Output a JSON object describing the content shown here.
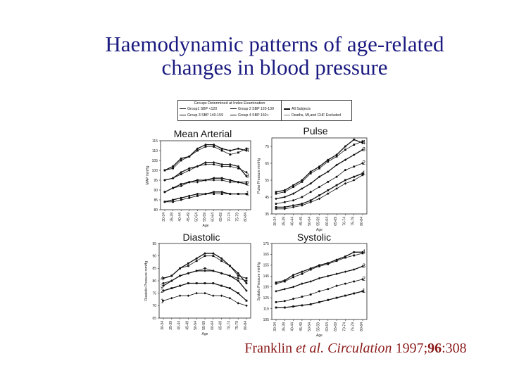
{
  "slide": {
    "title_line1": "Haemodynamic patterns of age-related",
    "title_line2": "changes in blood pressure",
    "citation_part1": "Franklin ",
    "citation_italic1": "et al. Circulation",
    "citation_part2": " 1997;",
    "citation_bold": "96",
    "citation_part3": ":308"
  },
  "legend": {
    "header": "Groups Determined at Index Examination",
    "items": [
      {
        "label": "Group1 SBP <120"
      },
      {
        "label": "Group 2 SBP 120-139"
      },
      {
        "label": "Group 3 SBP 140-159"
      },
      {
        "label": "Group 4 SBP 160+"
      }
    ],
    "subject_items": [
      {
        "label": "All Subjects"
      },
      {
        "label": "Deaths, MI,and CHF Excluded"
      }
    ]
  },
  "colors": {
    "title": "#1a1a80",
    "citation": "#8b1a1a",
    "lines": "#111111"
  },
  "chart_data": [
    {
      "type": "line",
      "title": "Mean Arterial",
      "ylabel": "MAP mmHg",
      "xlabel": "Age",
      "ylim": [
        80,
        115
      ],
      "yticks": [
        80,
        85,
        90,
        95,
        100,
        105,
        110,
        115
      ],
      "categories": [
        "30-34",
        "35-39",
        "40-44",
        "45-49",
        "50-54",
        "55-59",
        "60-64",
        "65-69",
        "70-74",
        "75-79",
        "80-84"
      ],
      "series": [
        {
          "name": "4",
          "values": [
            100,
            102,
            106,
            107,
            111,
            113,
            113,
            111,
            110,
            111,
            110
          ]
        },
        {
          "name": "4",
          "values": [
            100,
            101,
            105,
            107,
            110,
            112,
            112,
            110,
            108,
            109,
            111
          ]
        },
        {
          "name": "3",
          "values": [
            95,
            96,
            99,
            101,
            102,
            104,
            104,
            103,
            103,
            102,
            97
          ]
        },
        {
          "name": "3",
          "values": [
            95,
            96,
            98,
            100,
            102,
            103,
            103,
            102,
            102,
            101,
            99
          ]
        },
        {
          "name": "2",
          "values": [
            89,
            91,
            93,
            94,
            95,
            95,
            96,
            96,
            95,
            94,
            93
          ]
        },
        {
          "name": "2",
          "values": [
            89,
            91,
            92,
            94,
            94,
            95,
            95,
            95,
            94,
            94,
            94
          ]
        },
        {
          "name": "1",
          "values": [
            84,
            85,
            86,
            87,
            88,
            88,
            89,
            89,
            88,
            88,
            88
          ]
        },
        {
          "name": "1",
          "values": [
            84,
            84,
            85,
            86,
            87,
            88,
            88,
            88,
            88,
            88,
            88
          ]
        }
      ]
    },
    {
      "type": "line",
      "title": "Pulse",
      "ylabel": "Pulse Pressure mmHg",
      "xlabel": "Age",
      "ylim": [
        35,
        80
      ],
      "yticks": [
        35,
        45,
        55,
        65,
        75
      ],
      "categories": [
        "30-34",
        "35-39",
        "40-44",
        "45-49",
        "50-54",
        "55-59",
        "60-64",
        "65-69",
        "70-74",
        "75-79",
        "80-84"
      ],
      "series": [
        {
          "name": "4",
          "values": [
            48,
            49,
            52,
            55,
            60,
            63,
            67,
            70,
            75,
            79,
            77
          ]
        },
        {
          "name": "4",
          "values": [
            47,
            48,
            51,
            54,
            59,
            62,
            66,
            69,
            73,
            76,
            78
          ]
        },
        {
          "name": "3",
          "values": [
            44,
            45,
            47,
            50,
            53,
            57,
            60,
            64,
            67,
            70,
            73
          ]
        },
        {
          "name": "2",
          "values": [
            41,
            42,
            43,
            45,
            48,
            51,
            54,
            57,
            61,
            63,
            65
          ]
        },
        {
          "name": "1",
          "values": [
            39,
            39,
            40,
            41,
            43,
            46,
            49,
            52,
            55,
            57,
            59
          ]
        },
        {
          "name": "1",
          "values": [
            38,
            38,
            39,
            40,
            42,
            44,
            47,
            50,
            53,
            55,
            58
          ]
        }
      ]
    },
    {
      "type": "line",
      "title": "Diastolic",
      "ylabel": "Diastolic Pressure mmHg",
      "xlabel": "Age",
      "ylim": [
        65,
        95
      ],
      "yticks": [
        65,
        70,
        75,
        80,
        85,
        90,
        95
      ],
      "categories": [
        "30-34",
        "35-39",
        "40-44",
        "45-49",
        "50-54",
        "55-59",
        "60-64",
        "65-69",
        "70-74",
        "75-79",
        "80-84"
      ],
      "series": [
        {
          "name": "4",
          "values": [
            81,
            82,
            85,
            87,
            89,
            91,
            91,
            89,
            86,
            83,
            79
          ]
        },
        {
          "name": "4",
          "values": [
            81,
            82,
            85,
            86,
            88,
            90,
            90,
            88,
            86,
            82,
            81
          ]
        },
        {
          "name": "3",
          "values": [
            78,
            80,
            82,
            83,
            84,
            84,
            84,
            83,
            82,
            80,
            76
          ]
        },
        {
          "name": "3",
          "values": [
            79,
            80,
            82,
            83,
            84,
            85,
            84,
            83,
            82,
            81,
            80
          ]
        },
        {
          "name": "2",
          "values": [
            76,
            77,
            78,
            79,
            79,
            79,
            79,
            78,
            77,
            75,
            72
          ]
        },
        {
          "name": "1",
          "values": [
            72,
            73,
            74,
            74,
            75,
            75,
            74,
            74,
            73,
            71,
            70
          ]
        }
      ]
    },
    {
      "type": "line",
      "title": "Systolic",
      "ylabel": "Systolic Pressure mmHg",
      "xlabel": "Age",
      "ylim": [
        105,
        175
      ],
      "yticks": [
        105,
        115,
        125,
        135,
        145,
        155,
        165,
        175
      ],
      "categories": [
        "30-34",
        "35-39",
        "40-44",
        "45-49",
        "50-54",
        "55-59",
        "60-64",
        "65-69",
        "70-74",
        "75-79",
        "80-84"
      ],
      "series": [
        {
          "name": "4",
          "values": [
            139,
            141,
            146,
            149,
            152,
            155,
            157,
            160,
            163,
            167,
            167
          ]
        },
        {
          "name": "4",
          "values": [
            138,
            140,
            144,
            147,
            151,
            154,
            156,
            159,
            162,
            164,
            166
          ]
        },
        {
          "name": "3",
          "values": [
            131,
            133,
            135,
            138,
            140,
            143,
            145,
            147,
            149,
            151,
            154
          ]
        },
        {
          "name": "2",
          "values": [
            121,
            122,
            124,
            126,
            128,
            131,
            133,
            136,
            138,
            140,
            142
          ]
        },
        {
          "name": "1",
          "values": [
            116,
            116,
            117,
            118,
            119,
            121,
            123,
            125,
            127,
            129,
            131
          ]
        }
      ]
    }
  ]
}
